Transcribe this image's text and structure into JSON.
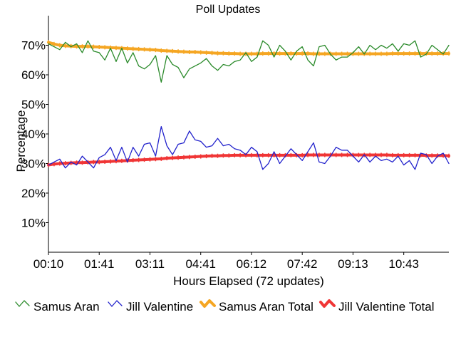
{
  "chart_data": {
    "type": "line",
    "title": "Poll Updates",
    "xlabel": "Hours Elapsed (72 updates)",
    "ylabel": "Percentage",
    "ylim": [
      0,
      80
    ],
    "y_ticks": [
      10,
      20,
      30,
      40,
      50,
      60,
      70
    ],
    "y_tick_labels": [
      "10%",
      "20%",
      "30%",
      "40%",
      "50%",
      "60%",
      "70%"
    ],
    "x_tick_labels": [
      "00:10",
      "01:41",
      "03:11",
      "04:41",
      "06:12",
      "07:42",
      "09:13",
      "10:43"
    ],
    "x_tick_positions": [
      1,
      10,
      19,
      28,
      37,
      46,
      55,
      64
    ],
    "n_updates": 72,
    "grid": false,
    "legend_position": "bottom",
    "series": [
      {
        "name": "Samus Aran",
        "color": "#2a8a2a",
        "marker": "zigzag",
        "values": [
          70.5,
          69.5,
          68.5,
          71.0,
          69.5,
          70.5,
          67.5,
          71.5,
          68.0,
          67.5,
          65.0,
          69.0,
          64.5,
          69.0,
          64.0,
          67.5,
          63.0,
          62.0,
          63.5,
          66.5,
          57.5,
          66.5,
          63.5,
          62.5,
          59.0,
          62.0,
          63.0,
          64.0,
          65.5,
          63.0,
          61.5,
          63.5,
          63.0,
          64.5,
          65.0,
          67.5,
          64.5,
          66.0,
          71.5,
          70.0,
          66.0,
          70.0,
          68.0,
          65.0,
          68.0,
          69.5,
          65.0,
          63.0,
          69.5,
          70.0,
          67.0,
          65.0,
          66.0,
          66.0,
          67.5,
          69.5,
          67.0,
          70.0,
          68.5,
          70.0,
          69.0,
          70.5,
          68.0,
          70.5,
          70.0,
          71.5,
          66.0,
          67.0,
          70.0,
          68.5,
          67.0,
          70.0
        ]
      },
      {
        "name": "Jill Valentine",
        "color": "#2222cc",
        "marker": "zigzag",
        "values": [
          29.5,
          30.5,
          31.5,
          28.5,
          30.5,
          29.5,
          32.5,
          30.5,
          28.5,
          32.0,
          33.0,
          35.5,
          31.0,
          35.5,
          30.5,
          35.5,
          32.5,
          36.5,
          37.0,
          32.5,
          42.5,
          36.0,
          33.0,
          36.5,
          37.0,
          41.0,
          38.0,
          37.5,
          35.5,
          36.0,
          38.5,
          36.0,
          36.5,
          35.0,
          34.5,
          33.0,
          35.5,
          34.0,
          28.0,
          30.0,
          34.0,
          30.0,
          32.5,
          35.0,
          33.0,
          31.0,
          34.0,
          37.0,
          30.5,
          30.0,
          32.5,
          35.5,
          34.5,
          34.5,
          32.5,
          30.5,
          33.0,
          30.5,
          32.5,
          31.0,
          31.5,
          30.5,
          32.5,
          29.5,
          31.0,
          28.0,
          33.5,
          33.0,
          30.0,
          32.5,
          33.5,
          30.0
        ]
      },
      {
        "name": "Samus Aran Total",
        "color": "#f5a623",
        "marker": "thick-line",
        "values": [
          71.0,
          70.4,
          70.0,
          69.8,
          69.7,
          69.6,
          69.6,
          69.6,
          69.5,
          69.4,
          69.3,
          69.2,
          69.1,
          69.0,
          68.9,
          68.8,
          68.7,
          68.6,
          68.5,
          68.4,
          68.2,
          68.1,
          68.0,
          67.9,
          67.8,
          67.7,
          67.7,
          67.6,
          67.5,
          67.4,
          67.3,
          67.3,
          67.2,
          67.2,
          67.1,
          67.1,
          67.1,
          67.1,
          67.2,
          67.2,
          67.2,
          67.2,
          67.2,
          67.2,
          67.2,
          67.2,
          67.2,
          67.1,
          67.1,
          67.1,
          67.1,
          67.1,
          67.1,
          67.1,
          67.1,
          67.1,
          67.1,
          67.1,
          67.1,
          67.1,
          67.1,
          67.2,
          67.2,
          67.2,
          67.2,
          67.2,
          67.2,
          67.2,
          67.2,
          67.2,
          67.2,
          67.2
        ]
      },
      {
        "name": "Jill Valentine Total",
        "color": "#f03535",
        "marker": "thick-line",
        "values": [
          29.5,
          29.8,
          30.0,
          30.1,
          30.2,
          30.3,
          30.3,
          30.4,
          30.5,
          30.5,
          30.6,
          30.7,
          30.8,
          30.9,
          31.0,
          31.1,
          31.2,
          31.3,
          31.4,
          31.5,
          31.6,
          31.8,
          31.9,
          32.0,
          32.1,
          32.2,
          32.3,
          32.4,
          32.5,
          32.6,
          32.6,
          32.7,
          32.7,
          32.8,
          32.8,
          32.8,
          32.8,
          32.8,
          32.8,
          32.8,
          32.8,
          32.8,
          32.8,
          32.8,
          32.8,
          32.8,
          32.9,
          32.9,
          32.9,
          32.9,
          32.9,
          32.9,
          32.9,
          32.9,
          32.9,
          32.9,
          32.9,
          32.9,
          32.9,
          32.9,
          32.9,
          32.8,
          32.8,
          32.8,
          32.8,
          32.8,
          32.8,
          32.7,
          32.7,
          32.7,
          32.7,
          32.6
        ]
      }
    ]
  }
}
